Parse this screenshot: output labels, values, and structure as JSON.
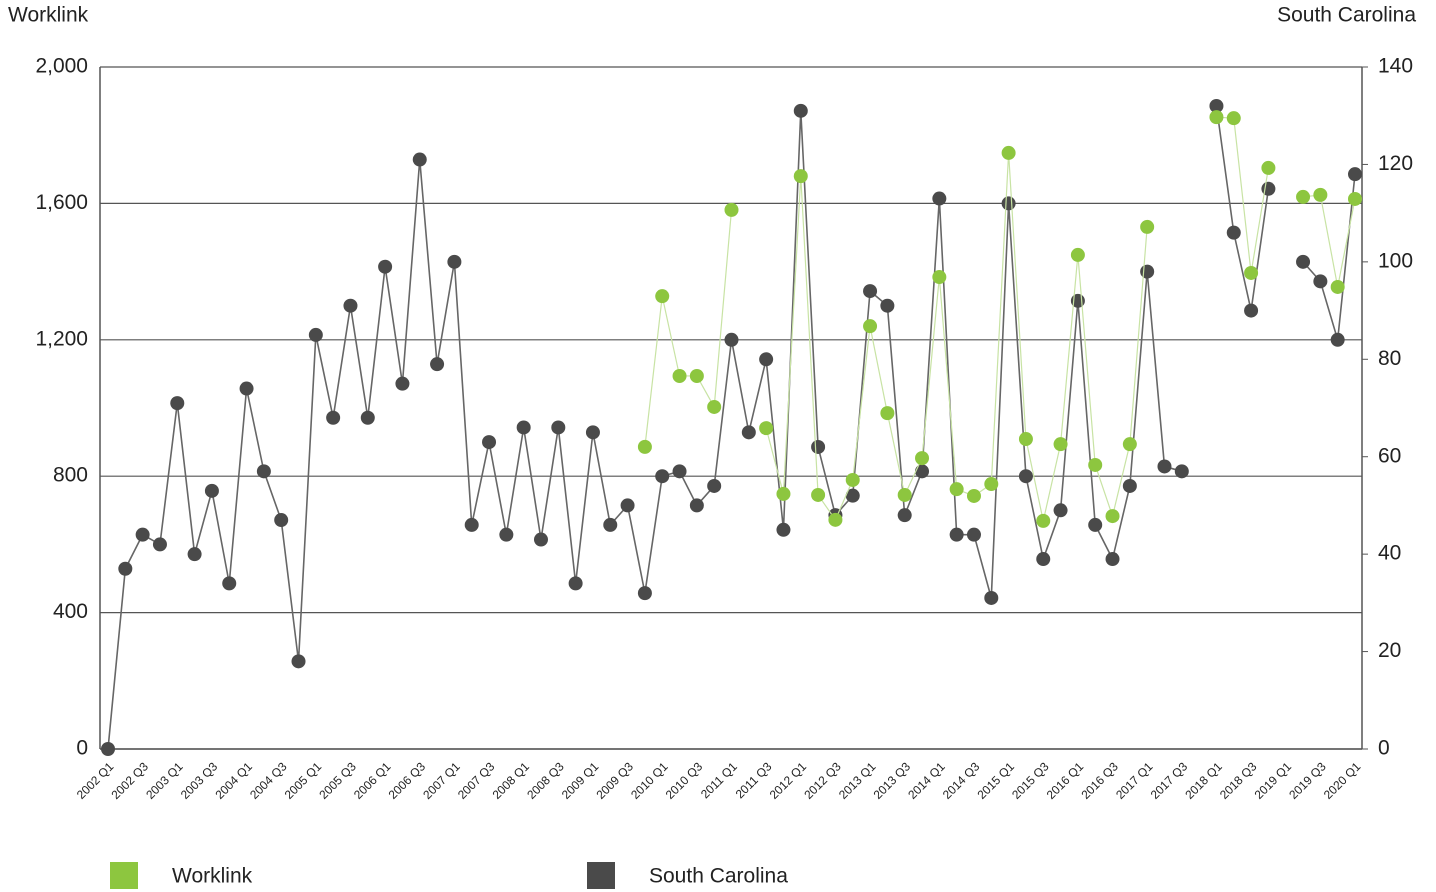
{
  "chart_data": {
    "type": "line",
    "y_label": "Worklink",
    "y2_label": "South Carolina",
    "categories": [
      "2002 Q1",
      null,
      "2002 Q3",
      null,
      "2003 Q1",
      null,
      "2003 Q3",
      null,
      "2004 Q1",
      null,
      "2004 Q3",
      null,
      "2005 Q1",
      null,
      "2005 Q3",
      null,
      "2006 Q1",
      null,
      "2006 Q3",
      null,
      "2007 Q1",
      null,
      "2007 Q3",
      null,
      "2008 Q1",
      null,
      "2008 Q3",
      null,
      "2009 Q1",
      null,
      "2009 Q3",
      null,
      "2010 Q1",
      null,
      "2010 Q3",
      null,
      "2011 Q1",
      null,
      "2011 Q3",
      null,
      "2012 Q1",
      null,
      "2012 Q3",
      null,
      "2013 Q1",
      null,
      "2013 Q3",
      null,
      "2014 Q1",
      null,
      "2014 Q3",
      null,
      "2015 Q1",
      null,
      "2015 Q3",
      null,
      "2016 Q1",
      null,
      "2016 Q3",
      null,
      "2017 Q1",
      null,
      "2017 Q3",
      null,
      "2018 Q1",
      null,
      "2018 Q3",
      null,
      "2019 Q1",
      null,
      "2019 Q3",
      null,
      "2020 Q1"
    ],
    "series": [
      {
        "name": "South Carolina",
        "color": "#4a4a4a",
        "axis": "y2",
        "values": [
          0,
          37,
          44,
          42,
          71,
          40,
          53,
          34,
          74,
          57,
          47,
          18,
          85,
          68,
          91,
          68,
          99,
          75,
          121,
          79,
          100,
          46,
          63,
          44,
          66,
          43,
          66,
          34,
          65,
          46,
          50,
          32,
          56,
          57,
          50,
          54,
          84,
          65,
          80,
          45,
          131,
          62,
          48,
          52,
          94,
          91,
          48,
          57,
          113,
          44,
          44,
          31,
          112,
          56,
          39,
          49,
          92,
          46,
          39,
          54,
          98,
          58,
          57,
          null,
          132,
          106,
          90,
          115,
          null,
          100,
          96,
          84,
          118
        ]
      },
      {
        "name": "Worklink",
        "color": "#8dc63f",
        "axis": "y",
        "values": [
          null,
          null,
          null,
          null,
          null,
          null,
          null,
          null,
          null,
          null,
          null,
          null,
          null,
          null,
          null,
          null,
          null,
          null,
          null,
          null,
          null,
          null,
          null,
          null,
          null,
          null,
          null,
          null,
          null,
          null,
          null,
          886,
          1328,
          1094,
          1094,
          1003,
          1581,
          null,
          941,
          748,
          1680,
          745,
          672,
          789,
          1240,
          985,
          745,
          853,
          1384,
          762,
          742,
          777,
          1748,
          909,
          669,
          894,
          1449,
          833,
          683,
          894,
          1531,
          null,
          null,
          null,
          1853,
          1850,
          1396,
          1704,
          null,
          1619,
          1625,
          1355,
          1613
        ]
      }
    ],
    "ylim": [
      0,
      2000
    ],
    "yticks": [
      0,
      400,
      800,
      {
        "value": 1200,
        "label": "1,200"
      },
      {
        "value": 1600,
        "label": "1,600"
      },
      {
        "value": 2000,
        "label": "2,000"
      }
    ],
    "y2lim": [
      0,
      140
    ],
    "y2ticks": [
      0,
      20,
      40,
      60,
      80,
      100,
      120,
      140
    ],
    "grid": true
  }
}
